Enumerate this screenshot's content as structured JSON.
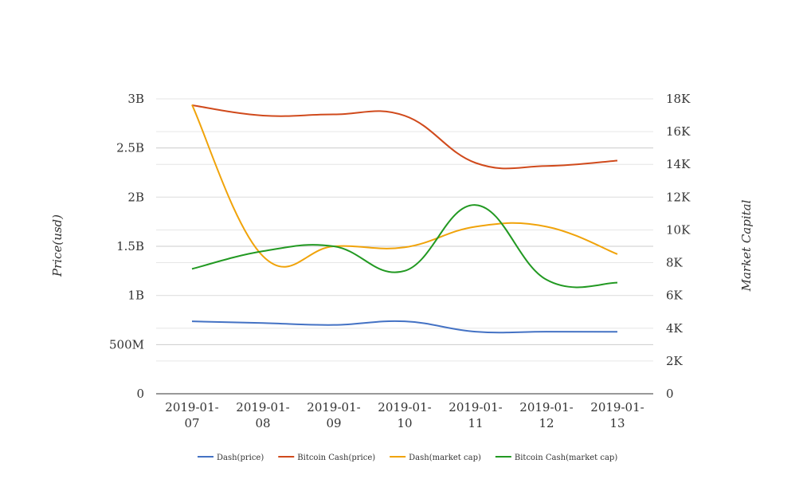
{
  "chart_data": {
    "type": "line",
    "categories": [
      "2019-01-07",
      "2019-01-08",
      "2019-01-09",
      "2019-01-10",
      "2019-01-11",
      "2019-01-12",
      "2019-01-13"
    ],
    "category_labels": [
      [
        "2019-01-",
        "07"
      ],
      [
        "2019-01-",
        "08"
      ],
      [
        "2019-01-",
        "09"
      ],
      [
        "2019-01-",
        "10"
      ],
      [
        "2019-01-",
        "11"
      ],
      [
        "2019-01-",
        "12"
      ],
      [
        "2019-01-",
        "13"
      ]
    ],
    "ylabel": "Price(usd)",
    "y2label": "Market Capital",
    "ylim": [
      0,
      3000000000
    ],
    "y2lim": [
      0,
      18000
    ],
    "y_ticks": [
      0,
      500000000,
      1000000000,
      1500000000,
      2000000000,
      2500000000,
      3000000000
    ],
    "y_tick_labels": [
      "0",
      "500M",
      "1B",
      "1.5B",
      "2B",
      "2.5B",
      "3B"
    ],
    "y2_ticks": [
      0,
      2000,
      4000,
      6000,
      8000,
      10000,
      12000,
      14000,
      16000,
      18000
    ],
    "y2_tick_labels": [
      "0",
      "2K",
      "4K",
      "6K",
      "8K",
      "10K",
      "12K",
      "14K",
      "16K",
      "18K"
    ],
    "grid": true,
    "legend_position": "bottom",
    "series": [
      {
        "name": "Dash(price)",
        "axis": "right",
        "color": "#4472c4",
        "values": [
          4420,
          4320,
          4200,
          4420,
          3790,
          3790,
          3780
        ]
      },
      {
        "name": "Bitcoin Cash(price)",
        "axis": "right",
        "color": "#d04a1c",
        "values": [
          17610,
          16980,
          17050,
          16970,
          14090,
          13900,
          14230
        ]
      },
      {
        "name": "Dash(market cap)",
        "axis": "left",
        "color": "#f0a30a",
        "values": [
          2940000000,
          1400000000,
          1500000000,
          1490000000,
          1700000000,
          1700000000,
          1420000000
        ]
      },
      {
        "name": "Bitcoin Cash(market cap)",
        "axis": "left",
        "color": "#229922",
        "values": [
          1270000000,
          1450000000,
          1500000000,
          1250000000,
          1920000000,
          1160000000,
          1130000000
        ]
      }
    ]
  }
}
